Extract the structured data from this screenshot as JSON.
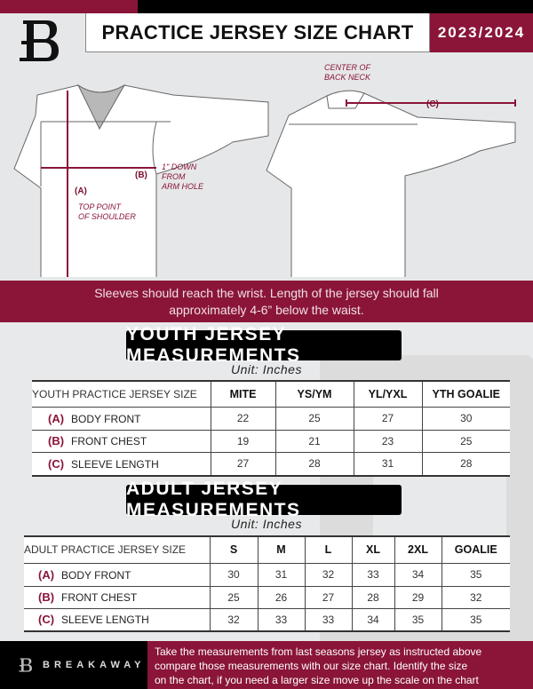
{
  "header": {
    "title": "PRACTICE JERSEY SIZE CHART",
    "season": "2023/2024",
    "logo_letter": "B"
  },
  "diagram": {
    "center_back_neck": [
      "CENTER OF",
      "BACK NECK"
    ],
    "label_a": "(A)",
    "label_b": "(B)",
    "label_c": "(C)",
    "top_point": [
      "TOP POINT",
      "OF SHOULDER"
    ],
    "arm_hole": [
      "1\" DOWN",
      "FROM",
      "ARM HOLE"
    ]
  },
  "banner": {
    "line1": "Sleeves should reach the wrist. Length of the jersey should fall",
    "line2": "approximately 4-6” below the waist."
  },
  "youth": {
    "heading": "YOUTH JERSEY MEASUREMENTS",
    "unit": "Unit: Inches",
    "columns": [
      "YOUTH PRACTICE JERSEY SIZE",
      "MITE",
      "YS/YM",
      "YL/YXL",
      "YTH GOALIE"
    ],
    "rows": [
      {
        "code": "(A)",
        "label": "BODY FRONT",
        "values": [
          "22",
          "25",
          "27",
          "30"
        ]
      },
      {
        "code": "(B)",
        "label": "FRONT CHEST",
        "values": [
          "19",
          "21",
          "23",
          "25"
        ]
      },
      {
        "code": "(C)",
        "label": "SLEEVE LENGTH",
        "values": [
          "27",
          "28",
          "31",
          "28"
        ]
      }
    ]
  },
  "adult": {
    "heading": "ADULT JERSEY MEASUREMENTS",
    "unit": "Unit: Inches",
    "columns": [
      "ADULT PRACTICE JERSEY SIZE",
      "S",
      "M",
      "L",
      "XL",
      "2XL",
      "GOALIE"
    ],
    "rows": [
      {
        "code": "(A)",
        "label": "BODY FRONT",
        "values": [
          "30",
          "31",
          "32",
          "33",
          "34",
          "35"
        ]
      },
      {
        "code": "(B)",
        "label": "FRONT CHEST",
        "values": [
          "25",
          "26",
          "27",
          "28",
          "29",
          "32"
        ]
      },
      {
        "code": "(C)",
        "label": "SLEEVE LENGTH",
        "values": [
          "32",
          "33",
          "33",
          "34",
          "35",
          "35"
        ]
      }
    ]
  },
  "footer": {
    "brand": "BREAKAWAY",
    "text": [
      "Take the measurements from last seasons jersey as instructed above",
      "compare those measurements  with our size chart. Identify the size",
      "on the chart, if you need a larger size move up the scale on the chart"
    ]
  },
  "colors": {
    "accent": "#8a1538",
    "dark": "#000000",
    "background": "#e6e7e8"
  }
}
